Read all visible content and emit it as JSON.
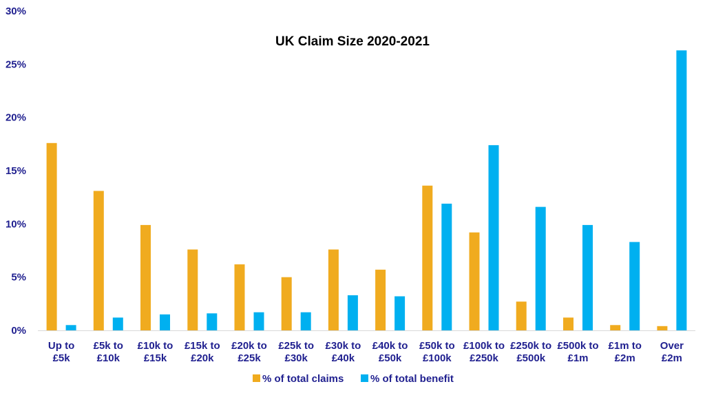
{
  "chart_data": {
    "type": "bar",
    "title": "UK Claim Size 2020-2021",
    "xlabel": "",
    "ylabel": "",
    "ylim": [
      0,
      30
    ],
    "ytick_labels": [
      "0%",
      "5%",
      "10%",
      "15%",
      "20%",
      "25%",
      "30%"
    ],
    "categories": [
      [
        "Up to",
        "£5k"
      ],
      [
        "£5k to",
        "£10k"
      ],
      [
        "£10k to",
        "£15k"
      ],
      [
        "£15k to",
        "£20k"
      ],
      [
        "£20k to",
        "£25k"
      ],
      [
        "£25k to",
        "£30k"
      ],
      [
        "£30k to",
        "£40k"
      ],
      [
        "£40k to",
        "£50k"
      ],
      [
        "£50k to",
        "£100k"
      ],
      [
        "£100k to",
        "£250k"
      ],
      [
        "£250k to",
        "£500k"
      ],
      [
        "£500k to",
        "£1m"
      ],
      [
        "£1m to",
        "£2m"
      ],
      [
        "Over",
        "£2m"
      ]
    ],
    "series": [
      {
        "name": "% of total claims",
        "color": "#f0ab1f",
        "values": [
          17.6,
          13.1,
          9.9,
          7.6,
          6.2,
          5.0,
          7.6,
          5.7,
          13.6,
          9.2,
          2.7,
          1.2,
          0.5,
          0.4
        ]
      },
      {
        "name": "% of total benefit",
        "color": "#00b0f0",
        "values": [
          0.5,
          1.2,
          1.5,
          1.6,
          1.7,
          1.7,
          3.3,
          3.2,
          11.9,
          17.4,
          11.6,
          9.9,
          8.3,
          26.3
        ]
      }
    ],
    "grid": false,
    "legend_position": "bottom"
  }
}
